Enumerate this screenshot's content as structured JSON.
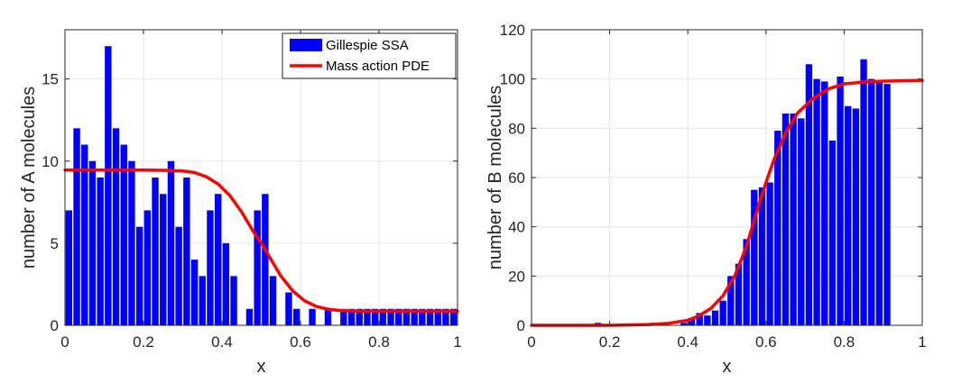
{
  "chart_data": [
    {
      "type": "bar",
      "title": "",
      "xlabel": "x",
      "ylabel": "number of A molecules",
      "xlim": [
        0,
        1
      ],
      "ylim": [
        0,
        18
      ],
      "xticks": [
        0,
        0.2,
        0.4,
        0.6,
        0.8,
        1
      ],
      "xtick_labels": [
        "0",
        "0.2",
        "0.4",
        "0.6",
        "0.8",
        "1"
      ],
      "yticks": [
        0,
        5,
        10,
        15
      ],
      "ytick_labels": [
        "0",
        "5",
        "10",
        "15"
      ],
      "grid": true,
      "bar_width": 0.02,
      "legend": {
        "location": "top-right",
        "entries": [
          {
            "label": "Gillespie SSA",
            "kind": "bar",
            "color": "#0000ff"
          },
          {
            "label": "Mass action PDE",
            "kind": "line",
            "color": "#ff0000"
          }
        ]
      },
      "series": [
        {
          "name": "Gillespie SSA",
          "kind": "bar",
          "color": "#0000ff",
          "x": [
            0.01,
            0.03,
            0.05,
            0.07,
            0.09,
            0.11,
            0.13,
            0.15,
            0.17,
            0.19,
            0.21,
            0.23,
            0.25,
            0.27,
            0.29,
            0.31,
            0.33,
            0.35,
            0.37,
            0.39,
            0.41,
            0.43,
            0.45,
            0.47,
            0.49,
            0.51,
            0.53,
            0.55,
            0.57,
            0.59,
            0.61,
            0.63,
            0.65,
            0.67,
            0.69,
            0.71,
            0.73,
            0.75,
            0.77,
            0.79,
            0.81,
            0.83,
            0.85,
            0.87,
            0.89,
            0.91,
            0.93,
            0.95,
            0.97,
            0.99
          ],
          "values": [
            7,
            12,
            11,
            10,
            9,
            17,
            12,
            11,
            10,
            6,
            7,
            9,
            8,
            10,
            6,
            9,
            4,
            3,
            7,
            8,
            5,
            3,
            0,
            1,
            7,
            8,
            3,
            0,
            2,
            1,
            0,
            1,
            0,
            1,
            0,
            1,
            1,
            1,
            1,
            1,
            1,
            1,
            1,
            1,
            1,
            1,
            1,
            1,
            1,
            1
          ]
        },
        {
          "name": "Mass action PDE",
          "kind": "line",
          "color": "#ff0000",
          "x": [
            0,
            0.05,
            0.1,
            0.15,
            0.2,
            0.25,
            0.3,
            0.33,
            0.36,
            0.39,
            0.42,
            0.45,
            0.48,
            0.5,
            0.52,
            0.55,
            0.58,
            0.61,
            0.64,
            0.67,
            0.7,
            0.75,
            0.8,
            0.9,
            1
          ],
          "values": [
            9.45,
            9.45,
            9.45,
            9.45,
            9.45,
            9.44,
            9.4,
            9.3,
            9.05,
            8.6,
            7.9,
            6.9,
            5.7,
            5.0,
            4.2,
            3.0,
            2.1,
            1.5,
            1.15,
            0.98,
            0.9,
            0.85,
            0.85,
            0.85,
            0.85
          ]
        }
      ]
    },
    {
      "type": "bar",
      "title": "",
      "xlabel": "x",
      "ylabel": "number of B molecules",
      "xlim": [
        0,
        1
      ],
      "ylim": [
        0,
        120
      ],
      "xticks": [
        0,
        0.2,
        0.4,
        0.6,
        0.8,
        1
      ],
      "xtick_labels": [
        "0",
        "0.2",
        "0.4",
        "0.6",
        "0.8",
        "1"
      ],
      "yticks": [
        0,
        20,
        40,
        60,
        80,
        100,
        120
      ],
      "ytick_labels": [
        "0",
        "20",
        "40",
        "60",
        "80",
        "100",
        "120"
      ],
      "grid": true,
      "bar_width": 0.02,
      "series": [
        {
          "kind": "bar",
          "color": "#0000ff",
          "x": [
            0.01,
            0.03,
            0.05,
            0.07,
            0.09,
            0.11,
            0.13,
            0.15,
            0.17,
            0.19,
            0.21,
            0.23,
            0.25,
            0.27,
            0.29,
            0.31,
            0.33,
            0.35,
            0.37,
            0.39,
            0.41,
            0.43,
            0.45,
            0.47,
            0.49,
            0.51,
            0.53,
            0.55,
            0.57,
            0.59,
            0.61,
            0.63,
            0.65,
            0.67,
            0.69,
            0.71,
            0.73,
            0.75,
            0.77,
            0.79,
            0.81,
            0.83,
            0.85,
            0.87,
            0.89,
            0.91,
            0.93,
            0.95,
            0.97,
            0.99
          ],
          "values": [
            0,
            0,
            0,
            0,
            0,
            0,
            0,
            0,
            1,
            0,
            0,
            0,
            0,
            0,
            0,
            1,
            0,
            0,
            0,
            1,
            3,
            5,
            4,
            6,
            10,
            20,
            25,
            35,
            55,
            56,
            58,
            79,
            86,
            86,
            84,
            106,
            100,
            99,
            75,
            101,
            89,
            88,
            108,
            100,
            99,
            98,
            0,
            0,
            0,
            0
          ]
        },
        {
          "kind": "line",
          "color": "#ff0000",
          "x": [
            0,
            0.1,
            0.2,
            0.3,
            0.35,
            0.4,
            0.43,
            0.46,
            0.49,
            0.52,
            0.55,
            0.58,
            0.6,
            0.62,
            0.65,
            0.68,
            0.72,
            0.76,
            0.8,
            0.85,
            0.9,
            0.95,
            1
          ],
          "values": [
            0,
            0,
            0,
            0.3,
            0.8,
            2,
            4,
            7,
            12,
            20,
            32,
            48,
            58,
            67,
            78,
            86,
            92,
            96,
            98,
            98.8,
            99.1,
            99.3,
            99.4
          ]
        }
      ]
    }
  ]
}
